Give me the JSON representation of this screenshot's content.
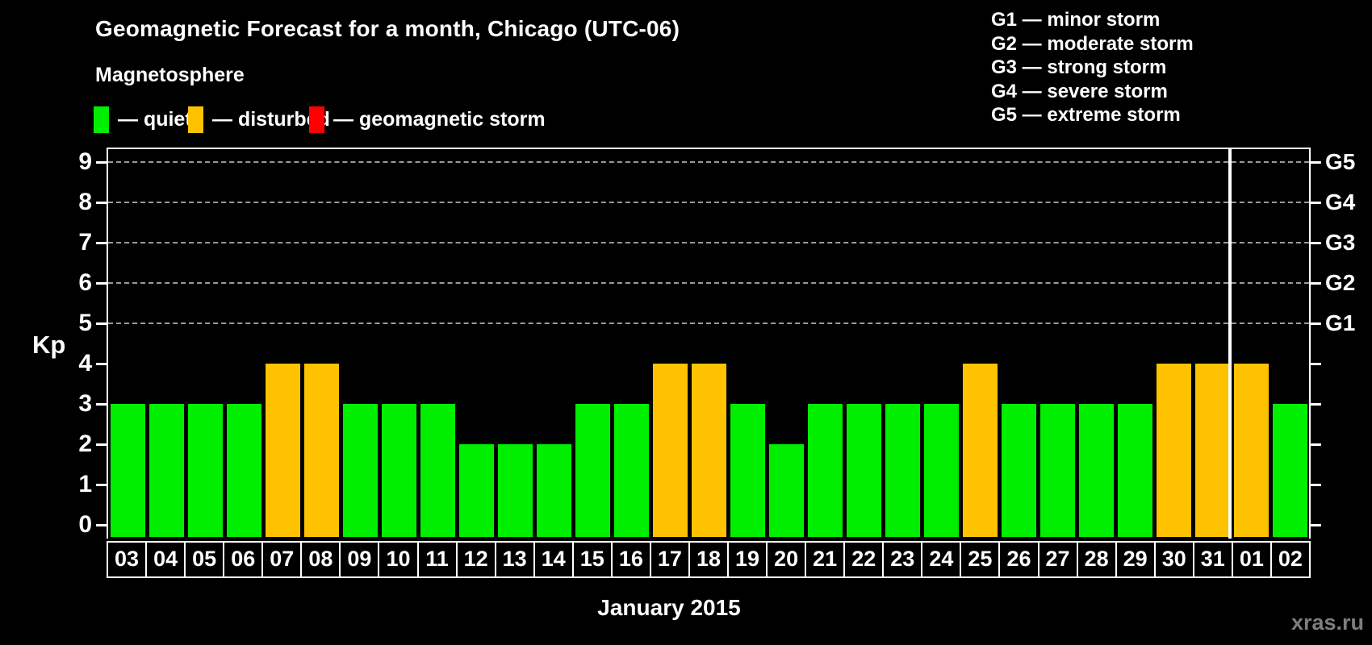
{
  "title": "Geomagnetic Forecast for a month, Chicago (UTC-06)",
  "subtitle": "Magnetosphere",
  "legend": {
    "quiet_label": "— quiet",
    "disturbed_label": "— disturbed",
    "storm_label": "— geomagnetic storm"
  },
  "g_legend": [
    "G1 — minor storm",
    "G2 — moderate storm",
    "G3 — strong storm",
    "G4 — severe storm",
    "G5 — extreme storm"
  ],
  "colors": {
    "quiet": "#00EE00",
    "disturbed": "#FFC200",
    "storm": "#FF0000",
    "grid": "#9a9a9a",
    "axis": "#FFFFFF",
    "watermark": "#7e7e7e"
  },
  "watermark": "xras.ru",
  "chart_data": {
    "type": "bar",
    "title": "Geomagnetic Forecast for a month, Chicago (UTC-06)",
    "xlabel": "January 2015",
    "ylabel": "Kp",
    "ylim": [
      0,
      9
    ],
    "grid": "dashed horizontal lines at Kp 5,6,7,8,9",
    "legend_position": "top-left",
    "categories": [
      "03",
      "04",
      "05",
      "06",
      "07",
      "08",
      "09",
      "10",
      "11",
      "12",
      "13",
      "14",
      "15",
      "16",
      "17",
      "18",
      "19",
      "20",
      "21",
      "22",
      "23",
      "24",
      "25",
      "26",
      "27",
      "28",
      "29",
      "30",
      "31",
      "01",
      "02"
    ],
    "values": [
      3,
      3,
      3,
      3,
      4,
      4,
      3,
      3,
      3,
      2,
      2,
      2,
      3,
      3,
      4,
      4,
      3,
      2,
      3,
      3,
      3,
      3,
      4,
      3,
      3,
      3,
      3,
      4,
      4,
      4,
      3
    ],
    "statuses": [
      "quiet",
      "quiet",
      "quiet",
      "quiet",
      "disturbed",
      "disturbed",
      "quiet",
      "quiet",
      "quiet",
      "quiet",
      "quiet",
      "quiet",
      "quiet",
      "quiet",
      "disturbed",
      "disturbed",
      "quiet",
      "quiet",
      "quiet",
      "quiet",
      "quiet",
      "quiet",
      "disturbed",
      "quiet",
      "quiet",
      "quiet",
      "quiet",
      "disturbed",
      "disturbed",
      "disturbed",
      "quiet"
    ],
    "y_ticks": [
      0,
      1,
      2,
      3,
      4,
      5,
      6,
      7,
      8,
      9
    ],
    "grid_kp": [
      5,
      6,
      7,
      8,
      9
    ],
    "g_scale": [
      {
        "kp": 9,
        "label": "G5"
      },
      {
        "kp": 8,
        "label": "G4"
      },
      {
        "kp": 7,
        "label": "G3"
      },
      {
        "kp": 6,
        "label": "G2"
      },
      {
        "kp": 5,
        "label": "G1"
      }
    ],
    "month_boundary_after_index": 28
  }
}
